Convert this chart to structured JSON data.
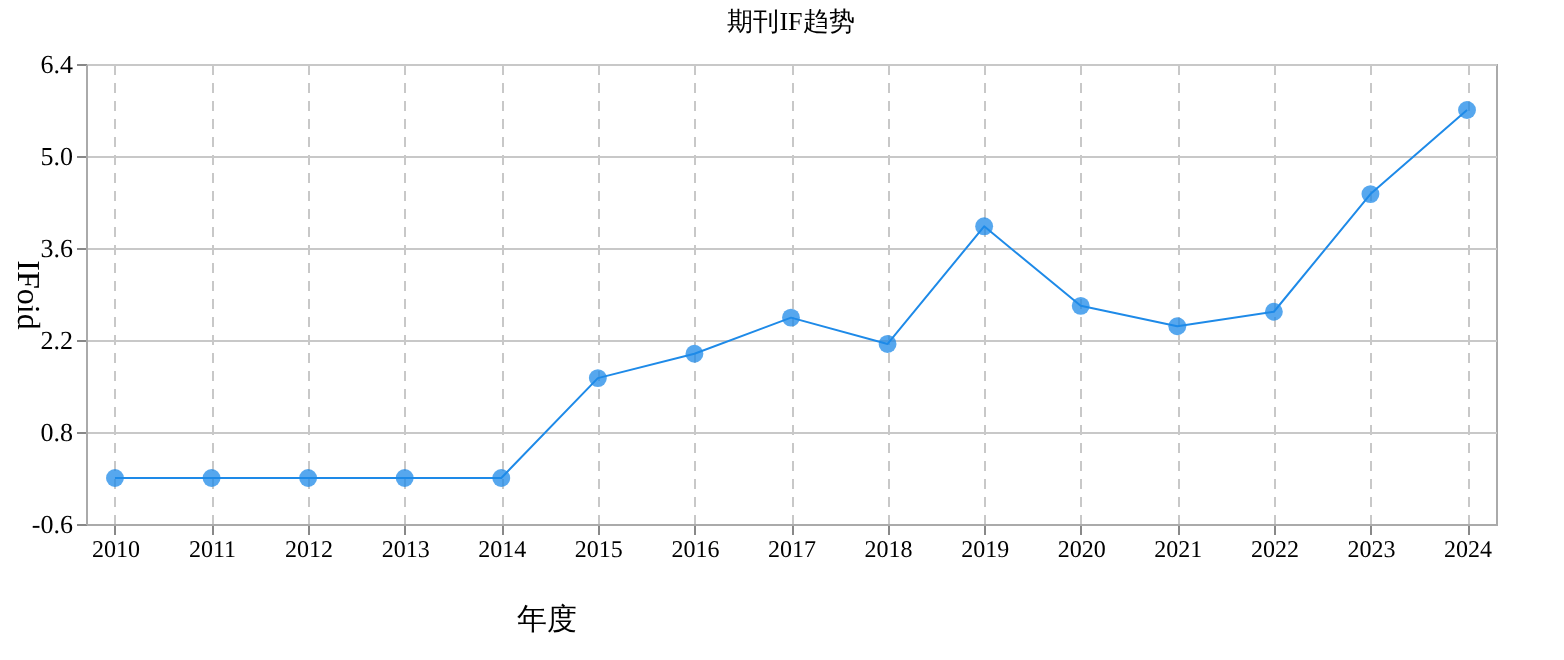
{
  "chart_data": {
    "type": "line",
    "title": "期刊IF趋势",
    "xlabel": "年度",
    "ylabel": "IFoid",
    "categories": [
      "2010",
      "2011",
      "2012",
      "2013",
      "2014",
      "2015",
      "2016",
      "2017",
      "2018",
      "2019",
      "2020",
      "2021",
      "2022",
      "2023",
      "2024"
    ],
    "series": [
      {
        "color": "#1e8ae8",
        "values": [
          0.1,
          0.1,
          0.1,
          0.1,
          0.1,
          1.62,
          1.99,
          2.54,
          2.14,
          3.93,
          2.72,
          2.41,
          2.63,
          4.42,
          5.7
        ]
      }
    ],
    "ylim": [
      -0.6,
      6.4
    ],
    "yticks": [
      -0.6,
      0.8,
      2.2,
      3.6,
      {
        "value": 5,
        "label": "5.0"
      },
      6.4
    ],
    "grid": true,
    "marker": "circle",
    "line_style": "solid"
  }
}
